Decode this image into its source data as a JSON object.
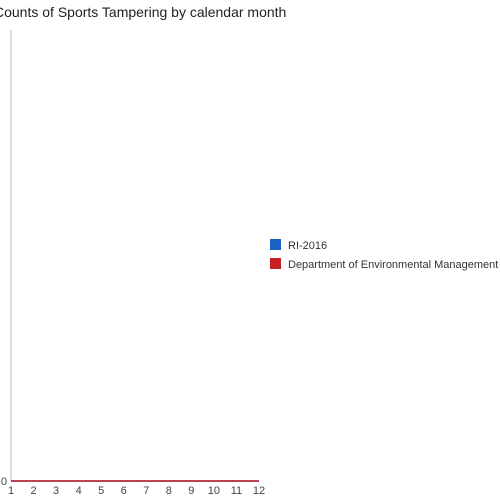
{
  "chart_data": {
    "type": "line",
    "title": "Counts of Sports Tampering by calendar month",
    "x": [
      1,
      2,
      3,
      4,
      5,
      6,
      7,
      8,
      9,
      10,
      11,
      12
    ],
    "x_tick_labels": [
      "1",
      "2",
      "3",
      "4",
      "5",
      "6",
      "7",
      "8",
      "9",
      "10",
      "11",
      "12"
    ],
    "y_tick_labels": [
      "0"
    ],
    "ylim": [
      0,
      1
    ],
    "xlim": [
      1,
      12
    ],
    "grid": false,
    "legend_position": "right",
    "series": [
      {
        "name": "RI-2016",
        "color": "#1a63c2",
        "values": [
          0,
          0,
          0,
          0,
          0,
          0,
          0,
          0,
          0,
          0,
          0,
          0
        ]
      },
      {
        "name": "Department of Environmental Management",
        "color": "#c62020",
        "values": [
          0,
          0,
          0,
          0,
          0,
          0,
          0,
          0,
          0,
          0,
          0,
          0
        ]
      }
    ]
  }
}
